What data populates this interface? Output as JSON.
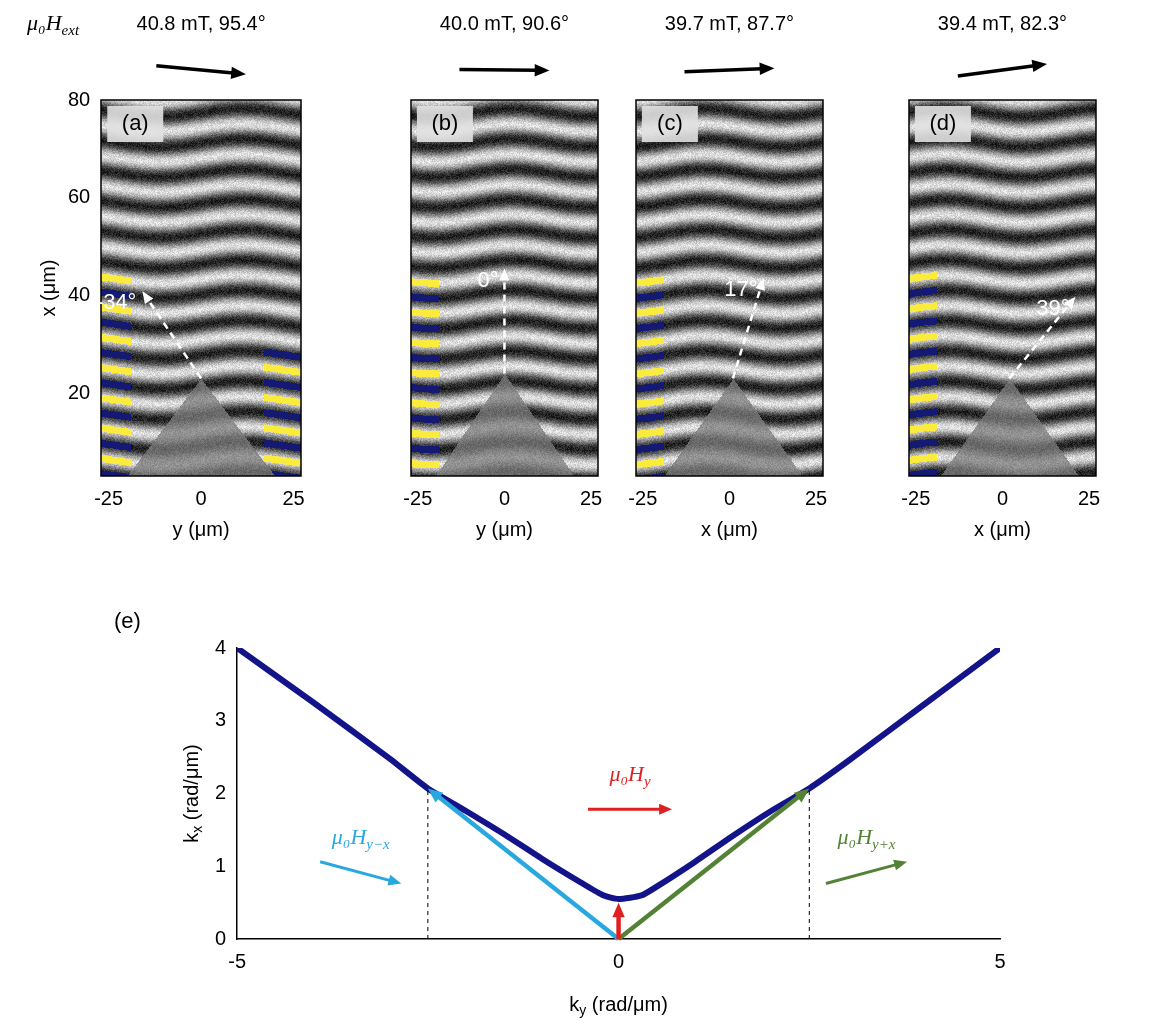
{
  "chart_data": [
    {
      "type": "image",
      "panel": "(a)",
      "field_symbol": {
        "text": "μ₀H",
        "sub": "ext"
      },
      "field": {
        "value": 40.8,
        "angle": 95.4,
        "label": "40.8 mT, 95.4°"
      },
      "beam": {
        "angle": -34,
        "label": "-34°",
        "origin": [
          0,
          23
        ]
      },
      "antenna": [
        [
          -20,
          3
        ],
        [
          0,
          23
        ],
        [
          20,
          3
        ]
      ],
      "xlabel": "y (μm)",
      "ylabel": "x (μm)",
      "xlim": [
        -27,
        27
      ],
      "ylim": [
        3,
        80
      ],
      "xticks": [
        -25,
        0,
        25
      ],
      "yticks": [
        20,
        40,
        60,
        80
      ]
    },
    {
      "type": "image",
      "panel": "(b)",
      "field": {
        "value": 40.0,
        "angle": 90.6,
        "label": "40.0 mT, 90.6°"
      },
      "beam": {
        "angle": 0,
        "label": "0°",
        "origin": [
          0,
          24
        ]
      },
      "antenna": [
        [
          -20,
          3
        ],
        [
          0,
          24
        ],
        [
          20,
          3
        ]
      ],
      "xlabel": "y (μm)",
      "xlim": [
        -27,
        27
      ],
      "ylim": [
        3,
        80
      ],
      "xticks": [
        -25,
        0,
        25
      ],
      "yticks": [
        20,
        40,
        60,
        80
      ],
      "tick_labels": "x"
    },
    {
      "type": "image",
      "panel": "(c)",
      "field": {
        "value": 39.7,
        "angle": 87.7,
        "label": "39.7 mT, 87.7°"
      },
      "beam": {
        "angle": 17,
        "label": "17°",
        "origin": [
          1,
          23
        ]
      },
      "antenna": [
        [
          -19,
          3
        ],
        [
          1,
          23
        ],
        [
          21,
          3
        ]
      ],
      "xlabel": "x (μm)",
      "xlim": [
        -27,
        27
      ],
      "ylim": [
        3,
        80
      ],
      "xticks": [
        -25,
        0,
        25
      ],
      "yticks": [
        20,
        40,
        60,
        80
      ],
      "tick_labels": "x"
    },
    {
      "type": "image",
      "panel": "(d)",
      "field": {
        "value": 39.4,
        "angle": 82.3,
        "label": "39.4 mT, 82.3°"
      },
      "beam": {
        "angle": 39,
        "label": "39°",
        "origin": [
          2,
          23
        ]
      },
      "antenna": [
        [
          -18,
          3
        ],
        [
          2,
          23
        ],
        [
          22,
          3
        ]
      ],
      "xlabel": "x (μm)",
      "xlim": [
        -27,
        27
      ],
      "ylim": [
        3,
        80
      ],
      "xticks": [
        -25,
        0,
        25
      ],
      "yticks": [
        20,
        40,
        60,
        80
      ],
      "tick_labels": "x"
    },
    {
      "type": "line",
      "panel": "(e)",
      "xlabel": {
        "text": "k",
        "sub": "y",
        "unit": " (rad/μm)"
      },
      "ylabel": {
        "text": "k",
        "sub": "x",
        "unit": " (rad/μm)"
      },
      "xlim": [
        -5,
        5
      ],
      "ylim": [
        0,
        4
      ],
      "xticks": [
        -5,
        0,
        5
      ],
      "yticks": [
        0,
        1,
        2,
        3,
        4
      ],
      "grid": false,
      "series": [
        {
          "color": "#13138a",
          "x": [
            -5,
            -4,
            -3,
            -2.5,
            -2,
            -1.5,
            -1,
            -0.5,
            -0.2,
            0,
            0.3,
            0.5,
            1,
            1.5,
            2,
            2.5,
            3,
            4,
            5
          ],
          "values": [
            4.0,
            3.25,
            2.48,
            2.07,
            1.76,
            1.44,
            1.1,
            0.78,
            0.6,
            0.55,
            0.6,
            0.72,
            1.06,
            1.42,
            1.76,
            2.07,
            2.44,
            3.22,
            4.0
          ]
        }
      ],
      "vectors": [
        {
          "from": [
            0,
            0
          ],
          "to": [
            -2.5,
            2.07
          ],
          "color": "#29a8e0"
        },
        {
          "from": [
            0,
            0
          ],
          "to": [
            2.5,
            2.07
          ],
          "color": "#548235"
        },
        {
          "from": [
            0,
            0
          ],
          "to": [
            0,
            0.5
          ],
          "color": "#e02020"
        }
      ],
      "guides": [
        {
          "x": -2.5,
          "y": [
            0,
            2.07
          ]
        },
        {
          "x": 2.5,
          "y": [
            0,
            2.07
          ]
        }
      ],
      "annotations": [
        {
          "text": "μ₀H",
          "sub": "y",
          "color": "#e02020",
          "x": 0.15,
          "y": 2.25,
          "angle": 90
        },
        {
          "text": "μ₀H",
          "sub": "y−x",
          "color": "#29a8e0",
          "x": -3.38,
          "y": 1.38,
          "angle": 105
        },
        {
          "text": "μ₀H",
          "sub": "y+x",
          "color": "#548235",
          "x": 3.25,
          "y": 1.38,
          "angle": 75
        }
      ]
    }
  ]
}
